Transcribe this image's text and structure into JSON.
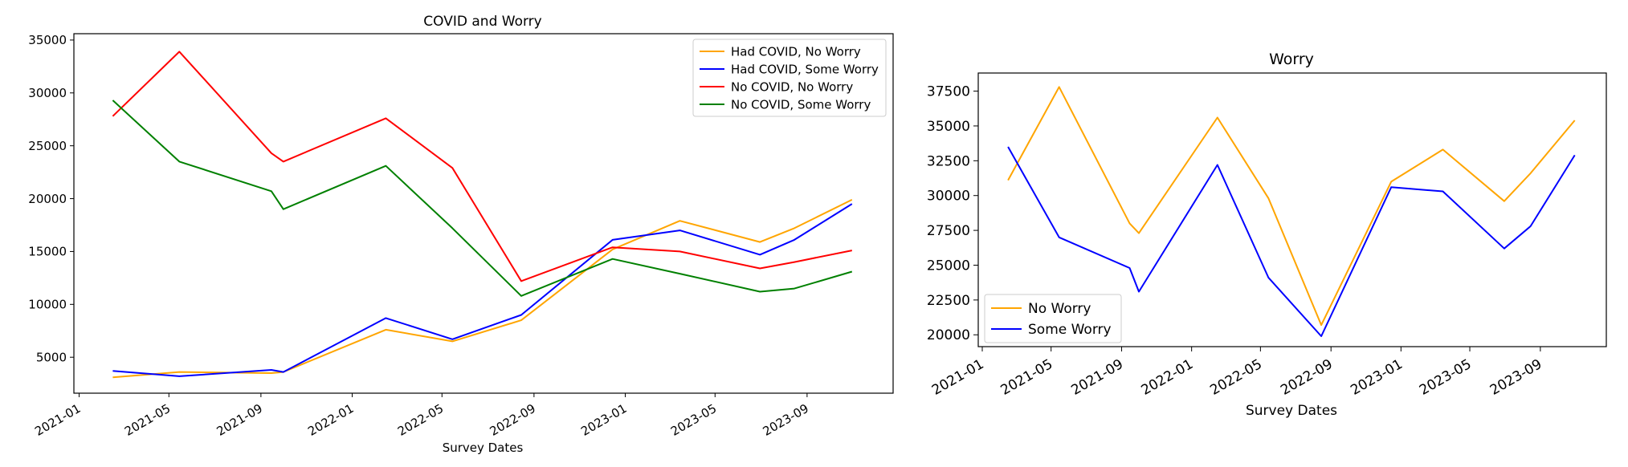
{
  "chart_data": [
    {
      "type": "line",
      "title": "COVID and Worry",
      "xlabel": "Survey Dates",
      "ylabel": "",
      "xlim": [
        "2020-12-25",
        "2023-12-25"
      ],
      "ylim": [
        1600,
        35600
      ],
      "x_ticks": [
        "2021-01",
        "2021-05",
        "2021-09",
        "2022-01",
        "2022-05",
        "2022-09",
        "2023-01",
        "2023-05",
        "2023-09"
      ],
      "y_ticks": [
        5000,
        10000,
        15000,
        20000,
        25000,
        30000,
        35000
      ],
      "legend_position": "top-right",
      "grid": false,
      "series": [
        {
          "name": "Had COVID, No Worry",
          "color": "#FFA500",
          "points": [
            [
              "2021-02-15",
              3100
            ],
            [
              "2021-05-15",
              3600
            ],
            [
              "2021-09-15",
              3500
            ],
            [
              "2021-10-01",
              3600
            ],
            [
              "2022-02-15",
              7600
            ],
            [
              "2022-05-15",
              6500
            ],
            [
              "2022-08-15",
              8500
            ],
            [
              "2022-12-15",
              15200
            ],
            [
              "2023-03-15",
              17900
            ],
            [
              "2023-06-30",
              15900
            ],
            [
              "2023-08-15",
              17200
            ],
            [
              "2023-10-31",
              19900
            ]
          ]
        },
        {
          "name": "Had COVID, Some Worry",
          "color": "#0000FF",
          "points": [
            [
              "2021-02-15",
              3700
            ],
            [
              "2021-05-15",
              3200
            ],
            [
              "2021-09-15",
              3800
            ],
            [
              "2021-10-01",
              3600
            ],
            [
              "2022-02-15",
              8700
            ],
            [
              "2022-05-15",
              6700
            ],
            [
              "2022-08-15",
              9000
            ],
            [
              "2022-12-15",
              16100
            ],
            [
              "2023-03-15",
              17000
            ],
            [
              "2023-06-30",
              14700
            ],
            [
              "2023-08-15",
              16100
            ],
            [
              "2023-10-31",
              19500
            ]
          ]
        },
        {
          "name": "No COVID, No Worry",
          "color": "#FF0000",
          "points": [
            [
              "2021-02-15",
              27800
            ],
            [
              "2021-05-15",
              33900
            ],
            [
              "2021-09-15",
              24300
            ],
            [
              "2021-10-01",
              23500
            ],
            [
              "2022-02-15",
              27600
            ],
            [
              "2022-05-15",
              22900
            ],
            [
              "2022-08-15",
              12200
            ],
            [
              "2022-12-15",
              15400
            ],
            [
              "2023-03-15",
              15000
            ],
            [
              "2023-06-30",
              13400
            ],
            [
              "2023-08-15",
              14000
            ],
            [
              "2023-10-31",
              15100
            ]
          ]
        },
        {
          "name": "No COVID, Some Worry",
          "color": "#008000",
          "points": [
            [
              "2021-02-15",
              29300
            ],
            [
              "2021-05-15",
              23500
            ],
            [
              "2021-09-15",
              20700
            ],
            [
              "2021-10-01",
              19000
            ],
            [
              "2022-02-15",
              23100
            ],
            [
              "2022-05-15",
              17200
            ],
            [
              "2022-08-15",
              10800
            ],
            [
              "2022-12-15",
              14300
            ],
            [
              "2023-03-15",
              12900
            ],
            [
              "2023-06-30",
              11200
            ],
            [
              "2023-08-15",
              11500
            ],
            [
              "2023-10-31",
              13100
            ]
          ]
        }
      ]
    },
    {
      "type": "line",
      "title": "Worry",
      "xlabel": "Survey Dates",
      "ylabel": "",
      "xlim": [
        "2020-12-25",
        "2023-12-25"
      ],
      "ylim": [
        19150,
        38800
      ],
      "x_ticks": [
        "2021-01",
        "2021-05",
        "2021-09",
        "2022-01",
        "2022-05",
        "2022-09",
        "2023-01",
        "2023-05",
        "2023-09"
      ],
      "y_ticks": [
        20000,
        22500,
        25000,
        27500,
        30000,
        32500,
        35000,
        37500
      ],
      "y_tick_labels": [
        "20000",
        "22500",
        "25000",
        "27500",
        "30000",
        "32500",
        "35000",
        "37500"
      ],
      "legend_position": "bottom-left",
      "grid": false,
      "series": [
        {
          "name": "No Worry",
          "color": "#FFA500",
          "points": [
            [
              "2021-02-15",
              31100
            ],
            [
              "2021-05-15",
              37800
            ],
            [
              "2021-09-15",
              28000
            ],
            [
              "2021-10-01",
              27300
            ],
            [
              "2022-02-15",
              35600
            ],
            [
              "2022-05-15",
              29800
            ],
            [
              "2022-08-15",
              20700
            ],
            [
              "2022-12-15",
              31000
            ],
            [
              "2023-03-15",
              33300
            ],
            [
              "2023-06-30",
              29600
            ],
            [
              "2023-08-15",
              31600
            ],
            [
              "2023-10-31",
              35400
            ]
          ]
        },
        {
          "name": "Some Worry",
          "color": "#0000FF",
          "points": [
            [
              "2021-02-15",
              33500
            ],
            [
              "2021-05-15",
              27000
            ],
            [
              "2021-09-15",
              24800
            ],
            [
              "2021-10-01",
              23100
            ],
            [
              "2022-02-15",
              32200
            ],
            [
              "2022-05-15",
              24100
            ],
            [
              "2022-08-15",
              19900
            ],
            [
              "2022-12-15",
              30600
            ],
            [
              "2023-03-15",
              30300
            ],
            [
              "2023-06-30",
              26200
            ],
            [
              "2023-08-15",
              27800
            ],
            [
              "2023-10-31",
              32900
            ]
          ]
        }
      ]
    }
  ]
}
